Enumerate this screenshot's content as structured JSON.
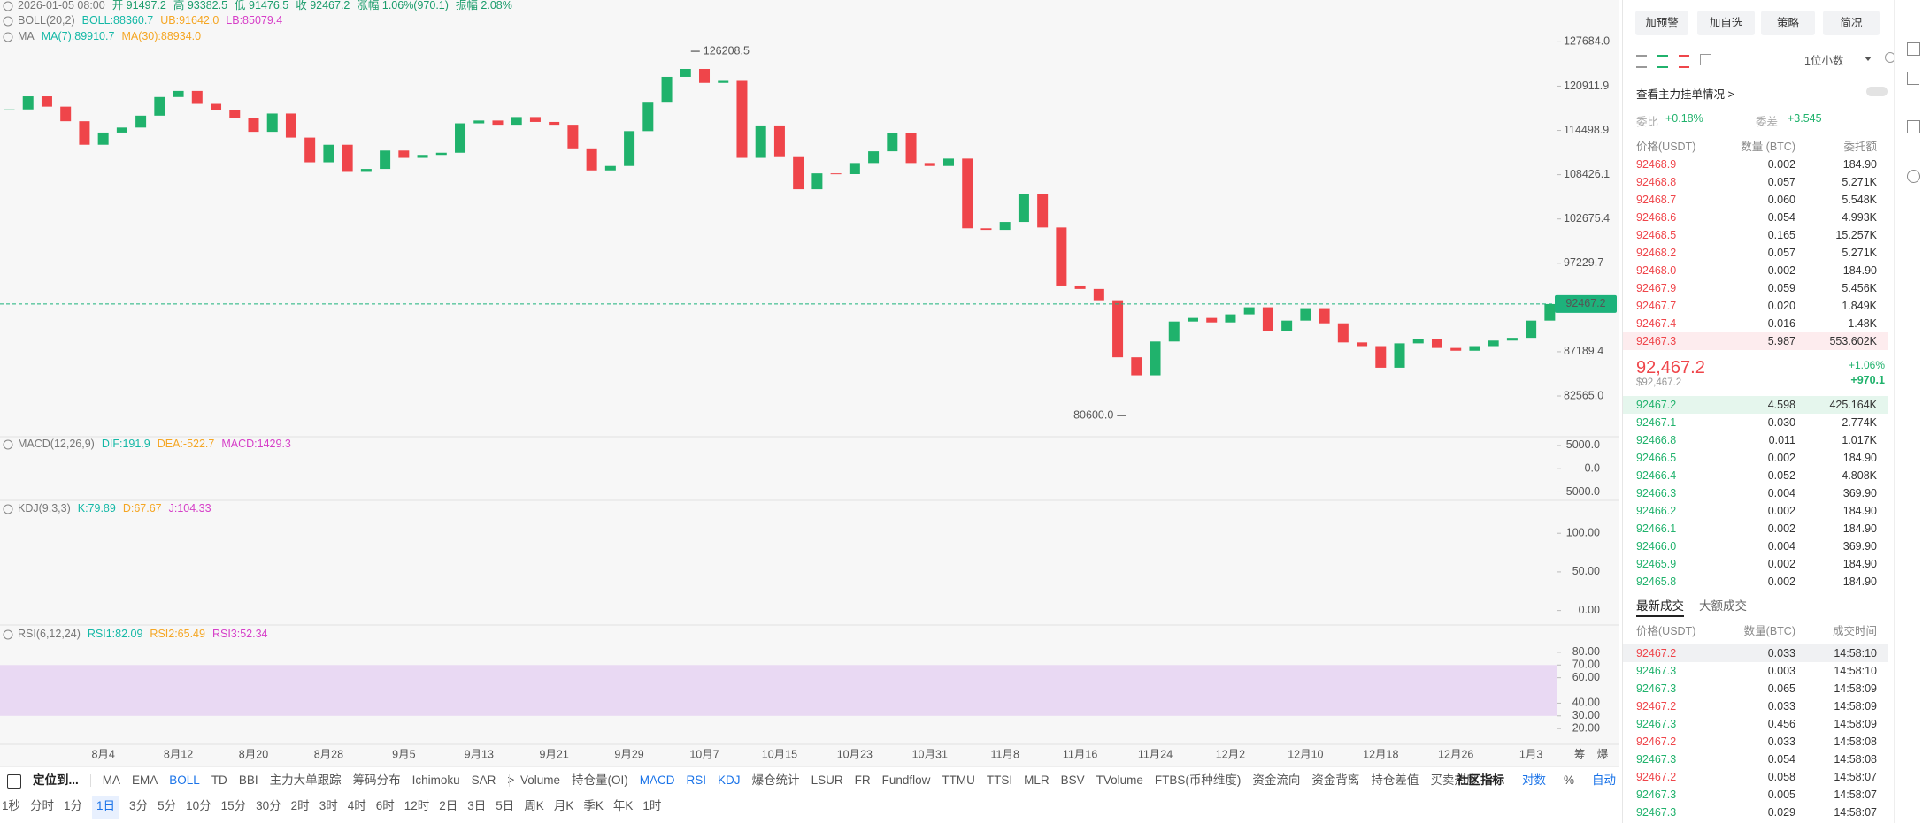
{
  "header": {
    "datetime": "2026-01-05 08:00",
    "open": "开 91497.2",
    "high": "高 93382.5",
    "low": "低 91476.5",
    "close": "收 92467.2",
    "change": "涨幅 1.06%(970.1)",
    "amplitude": "振幅 2.08%"
  },
  "chart_data": [
    {
      "type": "candlestick",
      "log_scale": true,
      "grid": false,
      "up_color": "#20b26c",
      "down_color": "#ef454a",
      "indicators": [
        {
          "name": "BOLL(20,2)",
          "items": [
            "BOLL:88360.7",
            "UB:91642.0",
            "LB:85079.4"
          ],
          "colors": [
            "#14b8a6",
            "#f5a623",
            "#d63fc8"
          ]
        },
        {
          "name": "MA",
          "items": [
            "MA(7):89910.7",
            "MA(30):88934.0"
          ],
          "colors": [
            "#14b8a6",
            "#f5a623"
          ]
        }
      ],
      "categories": [
        null,
        null,
        null,
        null,
        null,
        "8月4",
        null,
        null,
        null,
        "8月12",
        null,
        null,
        null,
        "8月20",
        null,
        null,
        null,
        "8月28",
        null,
        null,
        null,
        "9月5",
        null,
        null,
        null,
        "9月13",
        null,
        null,
        null,
        "9月21",
        null,
        null,
        null,
        "9月29",
        null,
        null,
        null,
        "10月7",
        null,
        null,
        null,
        "10月15",
        null,
        null,
        null,
        "10月23",
        null,
        null,
        null,
        "10月31",
        null,
        null,
        null,
        "11月8",
        null,
        null,
        null,
        "11月16",
        null,
        null,
        null,
        "11月24",
        null,
        null,
        null,
        "12月2",
        null,
        null,
        null,
        "12月10",
        null,
        null,
        null,
        "12月18",
        null,
        null,
        null,
        "12月26",
        null,
        null,
        null,
        "1月3",
        null
      ],
      "values": [
        117500,
        119400,
        117900,
        115800,
        112500,
        114200,
        114900,
        116600,
        119300,
        120200,
        118300,
        117400,
        116200,
        114300,
        116900,
        113500,
        110100,
        112500,
        108800,
        109200,
        111700,
        110700,
        111100,
        111400,
        115500,
        115900,
        115300,
        116400,
        115700,
        115300,
        112000,
        109000,
        109600,
        114400,
        118600,
        122300,
        123500,
        121400,
        121700,
        110700,
        115200,
        110800,
        106500,
        108600,
        108500,
        110000,
        111600,
        114100,
        110000,
        109600,
        110600,
        101500,
        101300,
        102300,
        105900,
        101600,
        94600,
        94200,
        92900,
        86600,
        84700,
        88300,
        90500,
        90900,
        90400,
        91300,
        92100,
        89400,
        90600,
        92000,
        90300,
        88200,
        87800,
        85500,
        88100,
        88600,
        87600,
        87300,
        87800,
        88400,
        88700,
        90600,
        92467.2
      ],
      "ylim": [
        78535,
        134440
      ],
      "yticks": [
        {
          "value": 127684,
          "label": "127684.0"
        },
        120911.9,
        114498.9,
        108426.1,
        102675.4,
        97229.7,
        87189.4,
        {
          "value": 82565,
          "label": "82565.0"
        }
      ],
      "last_price": 92467.2,
      "last_price_color": "#1db27b",
      "high_annotation": 126208.5,
      "low_annotation": {
        "value": 80600,
        "label": "80600.0"
      }
    },
    {
      "type": "pane",
      "name": "MACD(12,26,9)",
      "items": [
        "DIF:191.9",
        "DEA:-522.7",
        "MACD:1429.3"
      ],
      "colors": [
        "#14b8a6",
        "#f5a623",
        "#d63fc8"
      ],
      "ylim": [
        -6050,
        6320
      ],
      "yticks": [
        {
          "value": 5000,
          "label": "5000.0"
        },
        {
          "value": 0,
          "label": "0.0"
        },
        {
          "value": -5000,
          "label": "-5000.0"
        }
      ]
    },
    {
      "type": "pane",
      "name": "KDJ(9,3,3)",
      "items": [
        "K:79.89",
        "D:67.67",
        "J:104.33"
      ],
      "colors": [
        "#14b8a6",
        "#f5a623",
        "#d63fc8"
      ],
      "ylim": [
        -13,
        138
      ],
      "yticks": [
        {
          "value": 100,
          "label": "100.00"
        },
        {
          "value": 50,
          "label": "50.00"
        },
        {
          "value": 0,
          "label": "0.00"
        }
      ]
    },
    {
      "type": "pane",
      "name": "RSI(6,12,24)",
      "items": [
        "RSI1:82.09",
        "RSI2:65.49",
        "RSI3:52.34"
      ],
      "colors": [
        "#14b8a6",
        "#f5a623",
        "#d63fc8"
      ],
      "ylim": [
        9,
        98
      ],
      "yticks": [
        {
          "value": 80,
          "label": "80.00"
        },
        {
          "value": 70,
          "label": "70.00"
        },
        {
          "value": 60,
          "label": "60.00"
        },
        {
          "value": 40,
          "label": "40.00"
        },
        {
          "value": 30,
          "label": "30.00"
        },
        {
          "value": 20,
          "label": "20.00"
        }
      ],
      "band": {
        "from": 30,
        "to": 70
      },
      "band_color": "#e9d9f3"
    }
  ],
  "axis_tools": [
    "筹",
    "爆"
  ],
  "toolbar": {
    "locate": "定位到...",
    "main": [
      "MA",
      "EMA",
      "BOLL",
      "TD",
      "BBI",
      "主力大单跟踪",
      "筹码分布",
      "Ichimoku",
      "SAR",
      ">"
    ],
    "main_active": [
      2
    ],
    "sub": [
      "Volume",
      "持仓量(OI)",
      "MACD",
      "RSI",
      "KDJ",
      "爆仓统计",
      "LSUR",
      "FR",
      "Fundflow",
      "TTMU",
      "TTSI",
      "MLR",
      "BSV",
      "TVolume",
      "FTBS(币种维度)",
      "资金流向",
      "资金背离",
      "持仓差值",
      "买卖热度",
      ">"
    ],
    "sub_active": [
      2,
      3,
      4
    ],
    "community": "社区指标",
    "log": "对数",
    "percent": "%",
    "auto": "自动"
  },
  "timeframes": {
    "items": [
      "1秒",
      "分时",
      "1分",
      "1日",
      "3分",
      "5分",
      "10分",
      "15分",
      "30分",
      "2时",
      "3时",
      "4时",
      "6时",
      "12时",
      "2日",
      "3日",
      "5日",
      "周K",
      "月K",
      "季K",
      "年K",
      "1时"
    ],
    "selected": 3
  },
  "panel": {
    "buttons": [
      "加预警",
      "加自选",
      "策略",
      "简况"
    ],
    "precision": "1位小数",
    "main_orders": "查看主力挂单情况 >",
    "ratio_label": "委比",
    "ratio": "+0.18%",
    "diff_label": "委差",
    "diff": "+3.545",
    "book_header": [
      "价格(USDT)",
      "数量 (BTC)",
      "委托额"
    ],
    "asks": [
      [
        "92468.9",
        "0.002",
        "184.90"
      ],
      [
        "92468.8",
        "0.057",
        "5.271K"
      ],
      [
        "92468.7",
        "0.060",
        "5.548K"
      ],
      [
        "92468.6",
        "0.054",
        "4.993K"
      ],
      [
        "92468.5",
        "0.165",
        "15.257K"
      ],
      [
        "92468.2",
        "0.057",
        "5.271K"
      ],
      [
        "92468.0",
        "0.002",
        "184.90"
      ],
      [
        "92467.9",
        "0.059",
        "5.456K"
      ],
      [
        "92467.7",
        "0.020",
        "1.849K"
      ],
      [
        "92467.4",
        "0.016",
        "1.48K"
      ],
      [
        "92467.3",
        "5.987",
        "553.602K"
      ]
    ],
    "mid_price": "92,467.2",
    "mid_usd": "$92,467.2",
    "mid_change_pct": "+1.06%",
    "mid_change": "+970.1",
    "bids": [
      [
        "92467.2",
        "4.598",
        "425.164K"
      ],
      [
        "92467.1",
        "0.030",
        "2.774K"
      ],
      [
        "92466.8",
        "0.011",
        "1.017K"
      ],
      [
        "92466.5",
        "0.002",
        "184.90"
      ],
      [
        "92466.4",
        "0.052",
        "4.808K"
      ],
      [
        "92466.3",
        "0.004",
        "369.90"
      ],
      [
        "92466.2",
        "0.002",
        "184.90"
      ],
      [
        "92466.1",
        "0.002",
        "184.90"
      ],
      [
        "92466.0",
        "0.004",
        "369.90"
      ],
      [
        "92465.9",
        "0.002",
        "184.90"
      ],
      [
        "92465.8",
        "0.002",
        "184.90"
      ]
    ],
    "tabs": [
      "最新成交",
      "大额成交"
    ],
    "trade_header": [
      "价格(USDT)",
      "数量(BTC)",
      "成交时间"
    ],
    "trades": [
      {
        "price": "92467.2",
        "qty": "0.033",
        "time": "14:58:10",
        "side": "sell"
      },
      {
        "price": "92467.3",
        "qty": "0.003",
        "time": "14:58:10",
        "side": "buy"
      },
      {
        "price": "92467.3",
        "qty": "0.065",
        "time": "14:58:09",
        "side": "buy"
      },
      {
        "price": "92467.2",
        "qty": "0.033",
        "time": "14:58:09",
        "side": "sell"
      },
      {
        "price": "92467.3",
        "qty": "0.456",
        "time": "14:58:09",
        "side": "buy"
      },
      {
        "price": "92467.2",
        "qty": "0.033",
        "time": "14:58:08",
        "side": "sell"
      },
      {
        "price": "92467.3",
        "qty": "0.054",
        "time": "14:58:08",
        "side": "buy"
      },
      {
        "price": "92467.2",
        "qty": "0.058",
        "time": "14:58:07",
        "side": "sell"
      },
      {
        "price": "92467.3",
        "qty": "0.005",
        "time": "14:58:07",
        "side": "buy"
      },
      {
        "price": "92467.3",
        "qty": "0.029",
        "time": "14:58:07",
        "side": "buy"
      }
    ]
  }
}
